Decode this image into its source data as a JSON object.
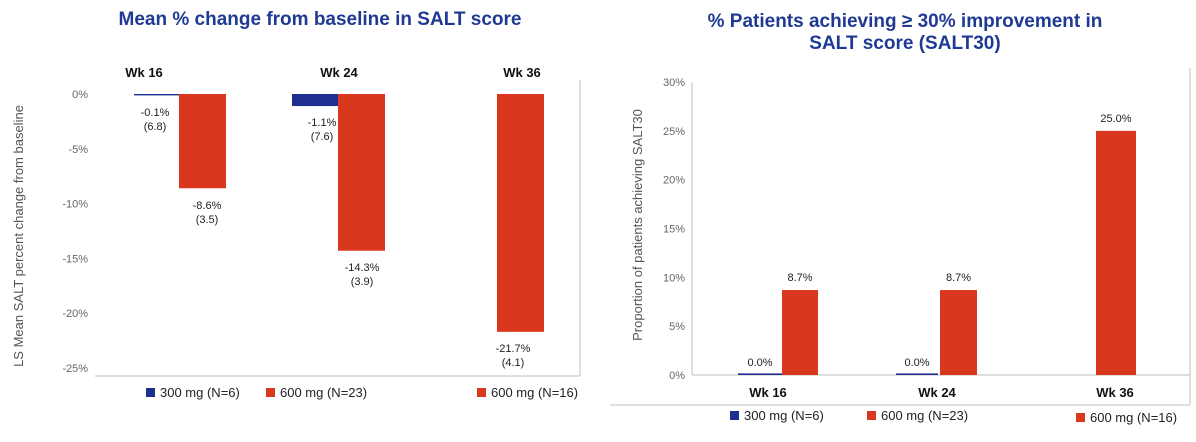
{
  "colors": {
    "series_300": "#1f2f8f",
    "series_600": "#d9381e",
    "axis": "#bfbfbf",
    "title": "#1f3a93"
  },
  "chart_data": [
    {
      "type": "bar",
      "title": "Mean % change from baseline in SALT score",
      "ylabel": "LS Mean SALT percent change from baseline",
      "categories": [
        "Wk 16",
        "Wk 24",
        "Wk 36"
      ],
      "ylim": [
        -25,
        0
      ],
      "yticks": [
        "0%",
        "-5%",
        "-10%",
        "-15%",
        "-20%",
        "-25%"
      ],
      "series": [
        {
          "values": [
            -0.1,
            -1.1,
            null
          ],
          "labels": [
            "-0.1%",
            "-1.1%",
            ""
          ],
          "sublabels": [
            "(6.8)",
            "(7.6)",
            ""
          ]
        },
        {
          "values": [
            -8.6,
            -14.3,
            -21.7
          ],
          "labels": [
            "-8.6%",
            "-14.3%",
            "-21.7%"
          ],
          "sublabels": [
            "(3.5)",
            "(3.9)",
            "(4.1)"
          ]
        }
      ],
      "legend": [
        "300 mg (N=6)",
        "600 mg (N=23)",
        "600 mg (N=16)"
      ],
      "grid": false,
      "legend_position": "bottom"
    },
    {
      "type": "bar",
      "title": "% Patients achieving ≥ 30% improvement in SALT score (SALT30)",
      "title_lines": [
        "% Patients achieving ≥ 30% improvement in",
        "SALT score (SALT30)"
      ],
      "ylabel": "Proportion of patients achieving SALT30",
      "categories": [
        "Wk 16",
        "Wk 24",
        "Wk 36"
      ],
      "ylim": [
        0,
        30
      ],
      "yticks": [
        "0%",
        "5%",
        "10%",
        "15%",
        "20%",
        "25%",
        "30%"
      ],
      "series": [
        {
          "values": [
            0.0,
            0.0,
            null
          ],
          "labels": [
            "0.0%",
            "0.0%",
            ""
          ]
        },
        {
          "values": [
            8.7,
            8.7,
            25.0
          ],
          "labels": [
            "8.7%",
            "8.7%",
            "25.0%"
          ]
        }
      ],
      "legend": [
        "300 mg (N=6)",
        "600 mg (N=23)",
        "600 mg (N=16)"
      ],
      "grid": false,
      "legend_position": "bottom"
    }
  ]
}
